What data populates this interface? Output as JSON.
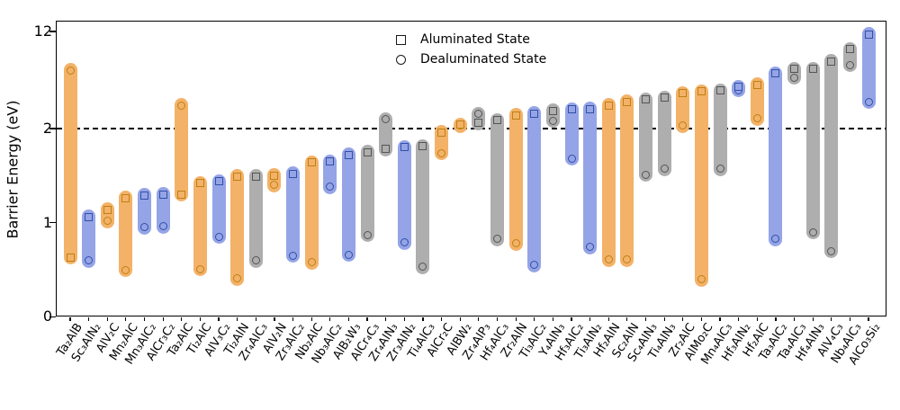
{
  "chart_data": {
    "type": "bar",
    "subtype": "range-bars-with-endpoint-markers",
    "title": "",
    "ylabel": "Barrier Energy (eV)",
    "xlabel": "",
    "y_ticks": [
      0,
      1,
      2,
      12
    ],
    "y_tick_labels": [
      "0",
      "1",
      "2",
      "12"
    ],
    "y_scale": "piecewise: linear from 0 to 2, logarithmic from 2 to 12",
    "ylim": [
      0,
      12.5
    ],
    "reference_line_y": 2.0,
    "reference_line_style": "black dashed",
    "grid": false,
    "legend_position": "upper center",
    "legend": [
      {
        "marker": "square",
        "label": "Aluminated State"
      },
      {
        "marker": "circle",
        "label": "Dealuminated State"
      }
    ],
    "colors": {
      "orange": "#F3B268",
      "blue": "#95A4E6",
      "gray": "#AEAEAE",
      "orange_edge": "#BE8013",
      "blue_edge": "#3050A8",
      "gray_edge": "#545454"
    },
    "bars": [
      {
        "label": "Ta₂AlB",
        "color": "orange",
        "aluminated": 0.63,
        "dealuminated": 5.85
      },
      {
        "label": "Sc₃AlN₂",
        "color": "blue",
        "aluminated": 1.06,
        "dealuminated": 0.6
      },
      {
        "label": "AlV₂C",
        "color": "orange",
        "aluminated": 1.14,
        "dealuminated": 1.02
      },
      {
        "label": "Mn₂AlC",
        "color": "orange",
        "aluminated": 1.26,
        "dealuminated": 0.5
      },
      {
        "label": "Mn₃AlC₂",
        "color": "blue",
        "aluminated": 1.29,
        "dealuminated": 0.95
      },
      {
        "label": "AlCr₃C₂",
        "color": "blue",
        "aluminated": 1.3,
        "dealuminated": 0.96
      },
      {
        "label": "Ta₂AlC",
        "color": "orange",
        "aluminated": 1.3,
        "dealuminated": 3.05
      },
      {
        "label": "Ti₂AlC",
        "color": "orange",
        "aluminated": 1.42,
        "dealuminated": 0.51
      },
      {
        "label": "AlV₃C₂",
        "color": "blue",
        "aluminated": 1.44,
        "dealuminated": 0.85
      },
      {
        "label": "Ti₂AlN",
        "color": "orange",
        "aluminated": 1.49,
        "dealuminated": 0.41
      },
      {
        "label": "Zr₄AlC₃",
        "color": "gray",
        "aluminated": 1.49,
        "dealuminated": 0.6
      },
      {
        "label": "AlV₂N",
        "color": "orange",
        "aluminated": 1.5,
        "dealuminated": 1.4
      },
      {
        "label": "Zr₃AlC₂",
        "color": "blue",
        "aluminated": 1.52,
        "dealuminated": 0.65
      },
      {
        "label": "Nb₂AlC",
        "color": "orange",
        "aluminated": 1.64,
        "dealuminated": 0.58
      },
      {
        "label": "Nb₃AlC₂",
        "color": "blue",
        "aluminated": 1.65,
        "dealuminated": 1.38
      },
      {
        "label": "AlB₂W₃",
        "color": "blue",
        "aluminated": 1.72,
        "dealuminated": 0.66
      },
      {
        "label": "AlCr₄C₃",
        "color": "gray",
        "aluminated": 1.75,
        "dealuminated": 0.87
      },
      {
        "label": "Zr₄AlN₃",
        "color": "gray",
        "aluminated": 1.78,
        "dealuminated": 2.36
      },
      {
        "label": "Zr₃AlN₂",
        "color": "blue",
        "aluminated": 1.8,
        "dealuminated": 0.79
      },
      {
        "label": "Ti₄AlC₃",
        "color": "gray",
        "aluminated": 1.81,
        "dealuminated": 0.53
      },
      {
        "label": "AlCr₂C",
        "color": "orange",
        "aluminated": 1.96,
        "dealuminated": 1.74
      },
      {
        "label": "AlBW₂",
        "color": "orange",
        "aluminated": 2.15,
        "dealuminated": 2.1
      },
      {
        "label": "Zr₄AlP₃",
        "color": "gray",
        "aluminated": 2.22,
        "dealuminated": 2.62
      },
      {
        "label": "Hf₄AlC₃",
        "color": "gray",
        "aluminated": 2.33,
        "dealuminated": 0.83
      },
      {
        "label": "Zr₂AlN",
        "color": "orange",
        "aluminated": 2.55,
        "dealuminated": 0.78
      },
      {
        "label": "Ti₃AlC₂",
        "color": "blue",
        "aluminated": 2.64,
        "dealuminated": 0.55
      },
      {
        "label": "Y₄AlN₃",
        "color": "gray",
        "aluminated": 2.78,
        "dealuminated": 2.3
      },
      {
        "label": "Hf₃AlC₂",
        "color": "blue",
        "aluminated": 2.85,
        "dealuminated": 1.68
      },
      {
        "label": "Ti₃AlN₂",
        "color": "blue",
        "aluminated": 2.87,
        "dealuminated": 0.74
      },
      {
        "label": "Hf₂AlN",
        "color": "orange",
        "aluminated": 3.06,
        "dealuminated": 0.61
      },
      {
        "label": "Sc₂AlN",
        "color": "orange",
        "aluminated": 3.26,
        "dealuminated": 0.61
      },
      {
        "label": "Sc₄AlN₃",
        "color": "gray",
        "aluminated": 3.4,
        "dealuminated": 1.51
      },
      {
        "label": "Ti₄AlN₃",
        "color": "gray",
        "aluminated": 3.53,
        "dealuminated": 1.57
      },
      {
        "label": "Zr₂AlC",
        "color": "orange",
        "aluminated": 3.82,
        "dealuminated": 2.1
      },
      {
        "label": "AlMo₂C",
        "color": "orange",
        "aluminated": 3.96,
        "dealuminated": 0.4
      },
      {
        "label": "Mn₄AlC₃",
        "color": "gray",
        "aluminated": 4.02,
        "dealuminated": 1.57
      },
      {
        "label": "Hf₃AlN₂",
        "color": "blue",
        "aluminated": 4.3,
        "dealuminated": 4.05
      },
      {
        "label": "Hf₂AlC",
        "color": "orange",
        "aluminated": 4.5,
        "dealuminated": 2.4
      },
      {
        "label": "Ta₃AlC₂",
        "color": "blue",
        "aluminated": 5.53,
        "dealuminated": 0.83
      },
      {
        "label": "Ta₄AlC₃",
        "color": "gray",
        "aluminated": 6.0,
        "dealuminated": 5.1
      },
      {
        "label": "Hf₄AlN₃",
        "color": "gray",
        "aluminated": 6.0,
        "dealuminated": 0.9
      },
      {
        "label": "AlV₄C₃",
        "color": "gray",
        "aluminated": 6.9,
        "dealuminated": 0.7
      },
      {
        "label": "Nb₄AlC₃",
        "color": "gray",
        "aluminated": 8.65,
        "dealuminated": 6.47
      },
      {
        "label": "AlCo₃Si₂",
        "color": "blue",
        "aluminated": 11.36,
        "dealuminated": 3.27
      }
    ]
  }
}
